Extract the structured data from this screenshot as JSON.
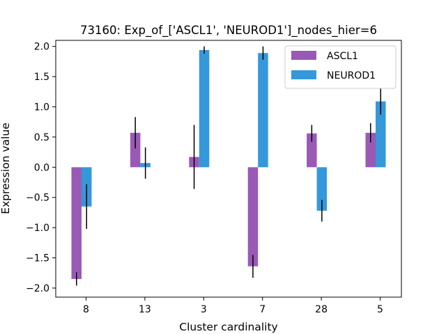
{
  "chart_data": {
    "type": "bar",
    "title": "73160: Exp_of_['ASCL1', 'NEUROD1']_nodes_hier=6",
    "xlabel": "Cluster cardinality",
    "ylabel": "Expression value",
    "categories": [
      "8",
      "13",
      "3",
      "7",
      "28",
      "5"
    ],
    "ylim": [
      -2.15,
      2.1
    ],
    "yticks": [
      -2.0,
      -1.5,
      -1.0,
      -0.5,
      0.0,
      0.5,
      1.0,
      1.5,
      2.0
    ],
    "ytick_labels": [
      "−2.0",
      "−1.5",
      "−1.0",
      "−0.5",
      "0.0",
      "0.5",
      "1.0",
      "1.5",
      "2.0"
    ],
    "grid": false,
    "legend_position": "top-right",
    "series": [
      {
        "name": "ASCL1",
        "color": "#9b59b6",
        "values": [
          -1.85,
          0.57,
          0.17,
          -1.64,
          0.56,
          0.57
        ],
        "errors": [
          0.11,
          0.26,
          0.53,
          0.19,
          0.14,
          0.16
        ]
      },
      {
        "name": "NEUROD1",
        "color": "#3498db",
        "values": [
          -0.65,
          0.07,
          1.94,
          1.89,
          -0.72,
          1.09
        ],
        "errors": [
          0.37,
          0.26,
          0.06,
          0.11,
          0.18,
          0.22
        ]
      }
    ]
  }
}
